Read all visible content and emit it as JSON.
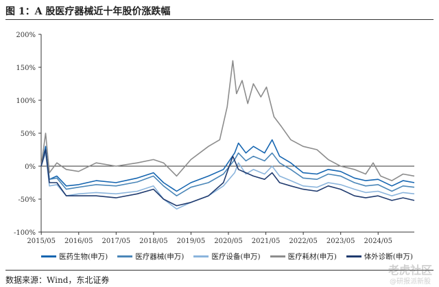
{
  "title": "图 1：A 股医疗器械近十年股价涨跌幅",
  "source": "数据来源：Wind，东北证券",
  "watermark": {
    "main": "老虎社区",
    "sub": "@研报派新股"
  },
  "chart_data": {
    "type": "line",
    "ylabel_ticks": [
      "200%",
      "150%",
      "100%",
      "50%",
      "0%",
      "-50%",
      "-100%"
    ],
    "ylim": [
      -100,
      200
    ],
    "x_ticks": [
      "2015/05",
      "2016/05",
      "2017/05",
      "2018/05",
      "2019/05",
      "2020/05",
      "2021/05",
      "2022/05",
      "2023/05",
      "2024/05"
    ],
    "x_range": [
      2015.33,
      2025.3
    ],
    "grid": false,
    "legend_position": "bottom",
    "series": [
      {
        "name": "医药生物(申万)",
        "color": "#1565b0",
        "points": [
          [
            2015.33,
            0
          ],
          [
            2015.45,
            30
          ],
          [
            2015.55,
            -20
          ],
          [
            2015.75,
            -15
          ],
          [
            2016.0,
            -30
          ],
          [
            2016.33,
            -28
          ],
          [
            2016.8,
            -22
          ],
          [
            2017.33,
            -25
          ],
          [
            2017.9,
            -18
          ],
          [
            2018.33,
            -10
          ],
          [
            2018.6,
            -25
          ],
          [
            2018.95,
            -38
          ],
          [
            2019.33,
            -25
          ],
          [
            2019.8,
            -15
          ],
          [
            2020.2,
            -5
          ],
          [
            2020.5,
            20
          ],
          [
            2020.6,
            35
          ],
          [
            2020.8,
            20
          ],
          [
            2021.0,
            30
          ],
          [
            2021.3,
            20
          ],
          [
            2021.5,
            40
          ],
          [
            2021.7,
            15
          ],
          [
            2022.0,
            5
          ],
          [
            2022.33,
            -10
          ],
          [
            2022.7,
            -12
          ],
          [
            2023.0,
            -5
          ],
          [
            2023.33,
            -8
          ],
          [
            2023.7,
            -18
          ],
          [
            2024.0,
            -22
          ],
          [
            2024.33,
            -20
          ],
          [
            2024.7,
            -30
          ],
          [
            2025.0,
            -22
          ],
          [
            2025.3,
            -25
          ]
        ]
      },
      {
        "name": "医疗器械(申万)",
        "color": "#4a86b8",
        "points": [
          [
            2015.33,
            0
          ],
          [
            2015.45,
            25
          ],
          [
            2015.55,
            -20
          ],
          [
            2015.75,
            -18
          ],
          [
            2016.0,
            -35
          ],
          [
            2016.33,
            -32
          ],
          [
            2016.8,
            -28
          ],
          [
            2017.33,
            -30
          ],
          [
            2017.9,
            -24
          ],
          [
            2018.33,
            -15
          ],
          [
            2018.6,
            -30
          ],
          [
            2018.95,
            -45
          ],
          [
            2019.33,
            -32
          ],
          [
            2019.8,
            -25
          ],
          [
            2020.2,
            -12
          ],
          [
            2020.5,
            10
          ],
          [
            2020.6,
            20
          ],
          [
            2020.8,
            8
          ],
          [
            2021.0,
            15
          ],
          [
            2021.3,
            8
          ],
          [
            2021.5,
            20
          ],
          [
            2021.7,
            5
          ],
          [
            2022.0,
            -5
          ],
          [
            2022.33,
            -18
          ],
          [
            2022.7,
            -20
          ],
          [
            2023.0,
            -12
          ],
          [
            2023.33,
            -15
          ],
          [
            2023.7,
            -25
          ],
          [
            2024.0,
            -30
          ],
          [
            2024.33,
            -28
          ],
          [
            2024.7,
            -38
          ],
          [
            2025.0,
            -30
          ],
          [
            2025.3,
            -32
          ]
        ]
      },
      {
        "name": "医疗设备(申万)",
        "color": "#8ab4dc",
        "points": [
          [
            2015.33,
            0
          ],
          [
            2015.45,
            20
          ],
          [
            2015.55,
            -30
          ],
          [
            2015.75,
            -28
          ],
          [
            2016.0,
            -45
          ],
          [
            2016.33,
            -42
          ],
          [
            2016.8,
            -40
          ],
          [
            2017.33,
            -42
          ],
          [
            2017.9,
            -38
          ],
          [
            2018.33,
            -30
          ],
          [
            2018.6,
            -50
          ],
          [
            2018.95,
            -65
          ],
          [
            2019.33,
            -55
          ],
          [
            2019.8,
            -45
          ],
          [
            2020.2,
            -30
          ],
          [
            2020.5,
            -10
          ],
          [
            2020.6,
            5
          ],
          [
            2020.8,
            -12
          ],
          [
            2021.0,
            -5
          ],
          [
            2021.3,
            -12
          ],
          [
            2021.5,
            0
          ],
          [
            2021.7,
            -15
          ],
          [
            2022.0,
            -22
          ],
          [
            2022.33,
            -30
          ],
          [
            2022.7,
            -32
          ],
          [
            2023.0,
            -25
          ],
          [
            2023.33,
            -28
          ],
          [
            2023.7,
            -35
          ],
          [
            2024.0,
            -40
          ],
          [
            2024.33,
            -38
          ],
          [
            2024.7,
            -45
          ],
          [
            2025.0,
            -40
          ],
          [
            2025.3,
            -42
          ]
        ]
      },
      {
        "name": "医疗耗材(申万)",
        "color": "#8c8c8c",
        "points": [
          [
            2015.33,
            0
          ],
          [
            2015.45,
            50
          ],
          [
            2015.55,
            -10
          ],
          [
            2015.75,
            5
          ],
          [
            2016.0,
            -5
          ],
          [
            2016.33,
            -8
          ],
          [
            2016.8,
            5
          ],
          [
            2017.33,
            0
          ],
          [
            2017.9,
            5
          ],
          [
            2018.33,
            10
          ],
          [
            2018.6,
            5
          ],
          [
            2018.95,
            -15
          ],
          [
            2019.33,
            10
          ],
          [
            2019.8,
            30
          ],
          [
            2020.1,
            40
          ],
          [
            2020.3,
            90
          ],
          [
            2020.45,
            160
          ],
          [
            2020.55,
            110
          ],
          [
            2020.7,
            130
          ],
          [
            2020.85,
            95
          ],
          [
            2021.0,
            125
          ],
          [
            2021.2,
            105
          ],
          [
            2021.35,
            120
          ],
          [
            2021.55,
            75
          ],
          [
            2021.75,
            60
          ],
          [
            2022.0,
            40
          ],
          [
            2022.33,
            30
          ],
          [
            2022.7,
            25
          ],
          [
            2023.0,
            10
          ],
          [
            2023.33,
            0
          ],
          [
            2023.7,
            -5
          ],
          [
            2024.0,
            -12
          ],
          [
            2024.2,
            5
          ],
          [
            2024.4,
            -15
          ],
          [
            2024.7,
            -22
          ],
          [
            2025.0,
            -12
          ],
          [
            2025.3,
            -15
          ]
        ]
      },
      {
        "name": "体外诊断(申万)",
        "color": "#1f3a6e",
        "points": [
          [
            2015.33,
            0
          ],
          [
            2015.45,
            25
          ],
          [
            2015.55,
            -25
          ],
          [
            2015.75,
            -25
          ],
          [
            2016.0,
            -45
          ],
          [
            2016.33,
            -45
          ],
          [
            2016.8,
            -45
          ],
          [
            2017.33,
            -48
          ],
          [
            2017.9,
            -42
          ],
          [
            2018.33,
            -35
          ],
          [
            2018.6,
            -50
          ],
          [
            2018.95,
            -60
          ],
          [
            2019.33,
            -55
          ],
          [
            2019.8,
            -45
          ],
          [
            2020.2,
            -25
          ],
          [
            2020.45,
            15
          ],
          [
            2020.6,
            -5
          ],
          [
            2020.8,
            -10
          ],
          [
            2021.0,
            -15
          ],
          [
            2021.3,
            -20
          ],
          [
            2021.5,
            -10
          ],
          [
            2021.7,
            -25
          ],
          [
            2022.0,
            -30
          ],
          [
            2022.33,
            -35
          ],
          [
            2022.7,
            -38
          ],
          [
            2023.0,
            -30
          ],
          [
            2023.33,
            -35
          ],
          [
            2023.7,
            -45
          ],
          [
            2024.0,
            -48
          ],
          [
            2024.33,
            -45
          ],
          [
            2024.7,
            -52
          ],
          [
            2025.0,
            -48
          ],
          [
            2025.3,
            -52
          ]
        ]
      }
    ]
  }
}
